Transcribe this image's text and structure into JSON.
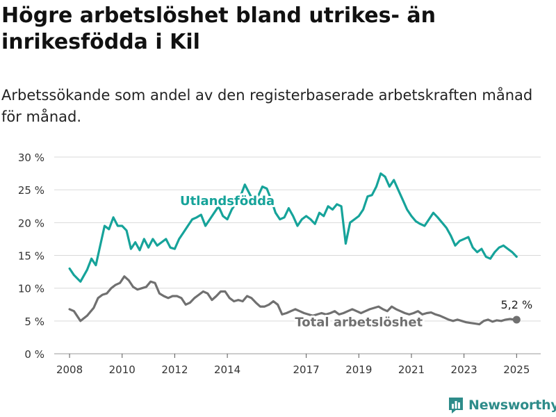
{
  "title": "Högre arbetslöshet bland utrikes- än inrikesfödda i Kil",
  "subtitle": "Arbetssökande som andel av den registerbaserade arbetskraften månad för månad.",
  "brand": {
    "name": "Newsworthy",
    "icon": "bar-chart-speech-bubble-icon",
    "color": "#2e8c8a"
  },
  "chart_data": {
    "type": "line",
    "x_axis": {
      "type": "date",
      "min": "2007-06",
      "max": "2025-12",
      "ticks": [
        "2008",
        "2010",
        "2012",
        "2014",
        "2017",
        "2019",
        "2021",
        "2023",
        "2025"
      ]
    },
    "y_axis": {
      "min": 0,
      "max": 30,
      "ticks": [
        0,
        5,
        10,
        15,
        20,
        25,
        30
      ],
      "tick_labels": [
        "0 %",
        "5 %",
        "10 %",
        "15 %",
        "20 %",
        "25 %",
        "30 %"
      ]
    },
    "grid": "horizontal",
    "legend": "inline-labels",
    "end_label": "5,2 %",
    "series": [
      {
        "name": "Utlandsfödda",
        "color": "#16a39a",
        "points": [
          [
            "2008-01",
            13.0
          ],
          [
            "2008-03",
            12.0
          ],
          [
            "2008-06",
            11.0
          ],
          [
            "2008-09",
            12.8
          ],
          [
            "2008-11",
            14.5
          ],
          [
            "2009-01",
            13.5
          ],
          [
            "2009-03",
            16.5
          ],
          [
            "2009-05",
            19.5
          ],
          [
            "2009-07",
            19.0
          ],
          [
            "2009-09",
            20.8
          ],
          [
            "2009-11",
            19.5
          ],
          [
            "2010-01",
            19.5
          ],
          [
            "2010-03",
            18.8
          ],
          [
            "2010-05",
            16.0
          ],
          [
            "2010-07",
            17.0
          ],
          [
            "2010-09",
            15.8
          ],
          [
            "2010-11",
            17.5
          ],
          [
            "2011-01",
            16.2
          ],
          [
            "2011-03",
            17.5
          ],
          [
            "2011-05",
            16.5
          ],
          [
            "2011-07",
            17.0
          ],
          [
            "2011-09",
            17.5
          ],
          [
            "2011-11",
            16.2
          ],
          [
            "2012-01",
            16.0
          ],
          [
            "2012-03",
            17.5
          ],
          [
            "2012-05",
            18.5
          ],
          [
            "2012-07",
            19.5
          ],
          [
            "2012-09",
            20.5
          ],
          [
            "2012-11",
            20.8
          ],
          [
            "2013-01",
            21.2
          ],
          [
            "2013-03",
            19.5
          ],
          [
            "2013-05",
            20.5
          ],
          [
            "2013-07",
            21.5
          ],
          [
            "2013-09",
            22.5
          ],
          [
            "2013-11",
            21.0
          ],
          [
            "2014-01",
            20.5
          ],
          [
            "2014-03",
            22.0
          ],
          [
            "2014-05",
            23.0
          ],
          [
            "2014-07",
            24.0
          ],
          [
            "2014-09",
            25.8
          ],
          [
            "2014-11",
            24.5
          ],
          [
            "2015-01",
            23.2
          ],
          [
            "2015-03",
            24.0
          ],
          [
            "2015-05",
            25.5
          ],
          [
            "2015-07",
            25.2
          ],
          [
            "2015-09",
            23.5
          ],
          [
            "2015-11",
            21.5
          ],
          [
            "2016-01",
            20.5
          ],
          [
            "2016-03",
            20.8
          ],
          [
            "2016-05",
            22.2
          ],
          [
            "2016-07",
            21.0
          ],
          [
            "2016-09",
            19.5
          ],
          [
            "2016-11",
            20.5
          ],
          [
            "2017-01",
            21.0
          ],
          [
            "2017-03",
            20.5
          ],
          [
            "2017-05",
            19.8
          ],
          [
            "2017-07",
            21.5
          ],
          [
            "2017-09",
            21.0
          ],
          [
            "2017-11",
            22.5
          ],
          [
            "2018-01",
            22.0
          ],
          [
            "2018-03",
            22.8
          ],
          [
            "2018-05",
            22.5
          ],
          [
            "2018-07",
            16.8
          ],
          [
            "2018-09",
            20.0
          ],
          [
            "2018-11",
            20.5
          ],
          [
            "2019-01",
            21.0
          ],
          [
            "2019-03",
            22.0
          ],
          [
            "2019-05",
            24.0
          ],
          [
            "2019-07",
            24.2
          ],
          [
            "2019-09",
            25.5
          ],
          [
            "2019-11",
            27.5
          ],
          [
            "2020-01",
            27.0
          ],
          [
            "2020-03",
            25.5
          ],
          [
            "2020-05",
            26.5
          ],
          [
            "2020-07",
            25.0
          ],
          [
            "2020-09",
            23.5
          ],
          [
            "2020-11",
            22.0
          ],
          [
            "2021-01",
            21.0
          ],
          [
            "2021-03",
            20.2
          ],
          [
            "2021-05",
            19.8
          ],
          [
            "2021-07",
            19.5
          ],
          [
            "2021-09",
            20.5
          ],
          [
            "2021-11",
            21.5
          ],
          [
            "2022-01",
            20.8
          ],
          [
            "2022-03",
            20.0
          ],
          [
            "2022-05",
            19.2
          ],
          [
            "2022-07",
            18.0
          ],
          [
            "2022-09",
            16.5
          ],
          [
            "2022-11",
            17.2
          ],
          [
            "2023-01",
            17.5
          ],
          [
            "2023-03",
            17.8
          ],
          [
            "2023-05",
            16.2
          ],
          [
            "2023-07",
            15.5
          ],
          [
            "2023-09",
            16.0
          ],
          [
            "2023-11",
            14.8
          ],
          [
            "2024-01",
            14.5
          ],
          [
            "2024-03",
            15.5
          ],
          [
            "2024-05",
            16.2
          ],
          [
            "2024-07",
            16.5
          ],
          [
            "2024-09",
            16.0
          ],
          [
            "2024-11",
            15.5
          ],
          [
            "2025-01",
            14.8
          ]
        ]
      },
      {
        "name": "Total arbetslöshet",
        "color": "#707070",
        "points": [
          [
            "2008-01",
            6.8
          ],
          [
            "2008-03",
            6.5
          ],
          [
            "2008-06",
            5.0
          ],
          [
            "2008-09",
            5.8
          ],
          [
            "2008-12",
            7.0
          ],
          [
            "2009-02",
            8.5
          ],
          [
            "2009-04",
            9.0
          ],
          [
            "2009-06",
            9.2
          ],
          [
            "2009-08",
            10.0
          ],
          [
            "2009-10",
            10.5
          ],
          [
            "2009-12",
            10.8
          ],
          [
            "2010-02",
            11.8
          ],
          [
            "2010-04",
            11.2
          ],
          [
            "2010-06",
            10.2
          ],
          [
            "2010-08",
            9.8
          ],
          [
            "2010-10",
            10.0
          ],
          [
            "2010-12",
            10.2
          ],
          [
            "2011-02",
            11.0
          ],
          [
            "2011-04",
            10.8
          ],
          [
            "2011-06",
            9.2
          ],
          [
            "2011-08",
            8.8
          ],
          [
            "2011-10",
            8.5
          ],
          [
            "2011-12",
            8.8
          ],
          [
            "2012-02",
            8.8
          ],
          [
            "2012-04",
            8.5
          ],
          [
            "2012-06",
            7.5
          ],
          [
            "2012-08",
            7.8
          ],
          [
            "2012-10",
            8.5
          ],
          [
            "2012-12",
            9.0
          ],
          [
            "2013-02",
            9.5
          ],
          [
            "2013-04",
            9.2
          ],
          [
            "2013-06",
            8.2
          ],
          [
            "2013-08",
            8.8
          ],
          [
            "2013-10",
            9.5
          ],
          [
            "2013-12",
            9.5
          ],
          [
            "2014-02",
            8.5
          ],
          [
            "2014-04",
            8.0
          ],
          [
            "2014-06",
            8.2
          ],
          [
            "2014-08",
            8.0
          ],
          [
            "2014-10",
            8.8
          ],
          [
            "2014-12",
            8.5
          ],
          [
            "2015-02",
            7.8
          ],
          [
            "2015-04",
            7.2
          ],
          [
            "2015-06",
            7.2
          ],
          [
            "2015-08",
            7.5
          ],
          [
            "2015-10",
            8.0
          ],
          [
            "2015-12",
            7.5
          ],
          [
            "2016-02",
            6.0
          ],
          [
            "2016-04",
            6.2
          ],
          [
            "2016-06",
            6.5
          ],
          [
            "2016-08",
            6.8
          ],
          [
            "2016-10",
            6.5
          ],
          [
            "2016-12",
            6.2
          ],
          [
            "2017-02",
            6.0
          ],
          [
            "2017-04",
            5.8
          ],
          [
            "2017-06",
            6.0
          ],
          [
            "2017-08",
            6.2
          ],
          [
            "2017-10",
            6.0
          ],
          [
            "2017-12",
            6.2
          ],
          [
            "2018-02",
            6.5
          ],
          [
            "2018-04",
            6.0
          ],
          [
            "2018-06",
            6.2
          ],
          [
            "2018-08",
            6.5
          ],
          [
            "2018-10",
            6.8
          ],
          [
            "2018-12",
            6.5
          ],
          [
            "2019-02",
            6.2
          ],
          [
            "2019-04",
            6.5
          ],
          [
            "2019-06",
            6.8
          ],
          [
            "2019-08",
            7.0
          ],
          [
            "2019-10",
            7.2
          ],
          [
            "2019-12",
            6.8
          ],
          [
            "2020-02",
            6.5
          ],
          [
            "2020-04",
            7.2
          ],
          [
            "2020-06",
            6.8
          ],
          [
            "2020-08",
            6.5
          ],
          [
            "2020-10",
            6.2
          ],
          [
            "2020-12",
            6.0
          ],
          [
            "2021-02",
            6.2
          ],
          [
            "2021-04",
            6.5
          ],
          [
            "2021-06",
            6.0
          ],
          [
            "2021-08",
            6.2
          ],
          [
            "2021-10",
            6.3
          ],
          [
            "2021-12",
            6.0
          ],
          [
            "2022-02",
            5.8
          ],
          [
            "2022-04",
            5.5
          ],
          [
            "2022-06",
            5.2
          ],
          [
            "2022-08",
            5.0
          ],
          [
            "2022-10",
            5.2
          ],
          [
            "2022-12",
            5.0
          ],
          [
            "2023-02",
            4.8
          ],
          [
            "2023-04",
            4.7
          ],
          [
            "2023-06",
            4.6
          ],
          [
            "2023-08",
            4.5
          ],
          [
            "2023-10",
            5.0
          ],
          [
            "2023-12",
            5.2
          ],
          [
            "2024-02",
            4.9
          ],
          [
            "2024-04",
            5.1
          ],
          [
            "2024-06",
            5.0
          ],
          [
            "2024-08",
            5.2
          ],
          [
            "2024-10",
            5.3
          ],
          [
            "2024-12",
            5.2
          ],
          [
            "2025-01",
            5.2
          ]
        ]
      }
    ]
  }
}
